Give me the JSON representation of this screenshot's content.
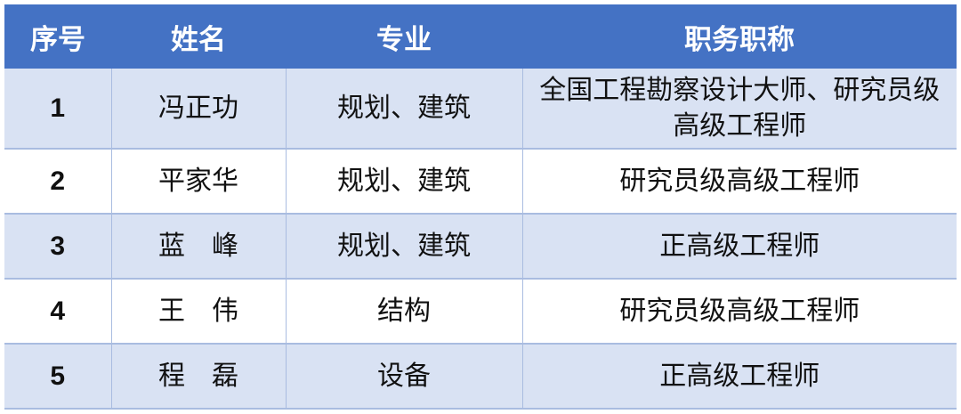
{
  "colors": {
    "header_bg": "#4472C4",
    "band_bg": "#D9E2F3",
    "border": "#A9BCE0"
  },
  "headers": [
    "序号",
    "姓名",
    "专业",
    "职务职称"
  ],
  "rows": [
    {
      "no": "1",
      "name": "冯正功",
      "major": "规划、建筑",
      "title": "全国工程勘察设计大师、研究员级高级工程师"
    },
    {
      "no": "2",
      "name": "平家华",
      "major": "规划、建筑",
      "title": "研究员级高级工程师"
    },
    {
      "no": "3",
      "name": "蓝　峰",
      "major": "规划、建筑",
      "title": "正高级工程师"
    },
    {
      "no": "4",
      "name": "王　伟",
      "major": "结构",
      "title": "研究员级高级工程师"
    },
    {
      "no": "5",
      "name": "程　磊",
      "major": "设备",
      "title": "正高级工程师"
    }
  ]
}
